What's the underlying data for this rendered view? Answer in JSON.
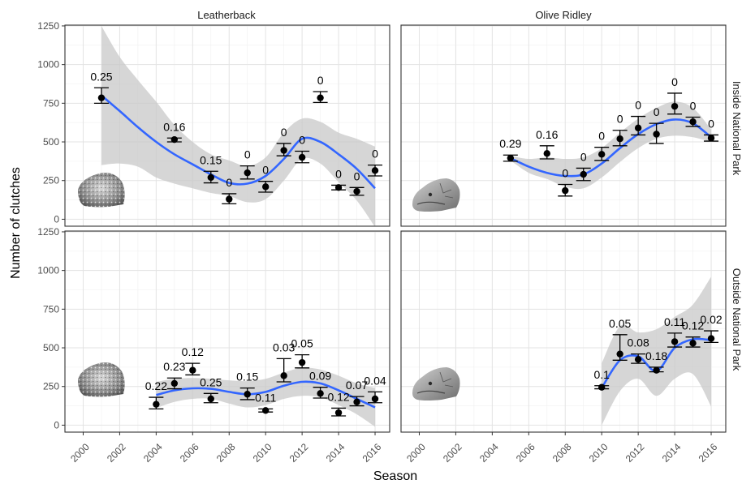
{
  "chart_data": {
    "type": "line",
    "xlabel": "Season",
    "ylabel": "Number of clutches",
    "x_ticks": [
      2000,
      2002,
      2004,
      2006,
      2008,
      2010,
      2012,
      2014,
      2016
    ],
    "y_ticks": [
      0,
      250,
      500,
      750,
      1000,
      1250
    ],
    "xlim": [
      1999.0,
      2016.8
    ],
    "ylim": [
      -45,
      1255
    ],
    "columns": [
      "Leatherback",
      "Olive Ridley"
    ],
    "rows": [
      "Inside National Park",
      "Outside National Park"
    ],
    "panels": [
      {
        "species": "Leatherback",
        "location": "Inside National Park",
        "points": [
          {
            "x": 2001,
            "y": 785,
            "lo": 750,
            "hi": 850,
            "label": "0.25"
          },
          {
            "x": 2005,
            "y": 515,
            "lo": 500,
            "hi": 525,
            "label": "0.16"
          },
          {
            "x": 2007,
            "y": 270,
            "lo": 235,
            "hi": 310,
            "label": "0.15"
          },
          {
            "x": 2008,
            "y": 130,
            "lo": 100,
            "hi": 165,
            "label": "0"
          },
          {
            "x": 2009,
            "y": 300,
            "lo": 260,
            "hi": 345,
            "label": "0"
          },
          {
            "x": 2010,
            "y": 210,
            "lo": 175,
            "hi": 245,
            "label": "0"
          },
          {
            "x": 2011,
            "y": 445,
            "lo": 410,
            "hi": 490,
            "label": "0"
          },
          {
            "x": 2012,
            "y": 400,
            "lo": 365,
            "hi": 440,
            "label": "0"
          },
          {
            "x": 2013,
            "y": 785,
            "lo": 755,
            "hi": 825,
            "label": "0"
          },
          {
            "x": 2014,
            "y": 205,
            "lo": 190,
            "hi": 220,
            "label": "0"
          },
          {
            "x": 2015,
            "y": 180,
            "lo": 155,
            "hi": 205,
            "label": "0"
          },
          {
            "x": 2016,
            "y": 315,
            "lo": 280,
            "hi": 350,
            "label": "0"
          }
        ],
        "smooth": [
          [
            2001,
            800
          ],
          [
            2002,
            700
          ],
          [
            2003,
            595
          ],
          [
            2004,
            500
          ],
          [
            2005,
            420
          ],
          [
            2006,
            355
          ],
          [
            2007,
            290
          ],
          [
            2008,
            235
          ],
          [
            2009,
            230
          ],
          [
            2010,
            280
          ],
          [
            2011,
            390
          ],
          [
            2012,
            520
          ],
          [
            2013,
            500
          ],
          [
            2014,
            420
          ],
          [
            2015,
            325
          ],
          [
            2016,
            200
          ]
        ],
        "band_upper": [
          [
            2001,
            1250
          ],
          [
            2002,
            1050
          ],
          [
            2003,
            900
          ],
          [
            2004,
            760
          ],
          [
            2005,
            610
          ],
          [
            2006,
            500
          ],
          [
            2007,
            420
          ],
          [
            2008,
            380
          ],
          [
            2009,
            345
          ],
          [
            2010,
            400
          ],
          [
            2011,
            560
          ],
          [
            2012,
            650
          ],
          [
            2013,
            630
          ],
          [
            2014,
            560
          ],
          [
            2015,
            520
          ],
          [
            2016,
            470
          ]
        ],
        "band_lower": [
          [
            2001,
            350
          ],
          [
            2002,
            360
          ],
          [
            2003,
            340
          ],
          [
            2004,
            270
          ],
          [
            2005,
            230
          ],
          [
            2006,
            200
          ],
          [
            2007,
            170
          ],
          [
            2008,
            150
          ],
          [
            2009,
            110
          ],
          [
            2010,
            130
          ],
          [
            2011,
            250
          ],
          [
            2012,
            390
          ],
          [
            2013,
            360
          ],
          [
            2014,
            240
          ],
          [
            2015,
            120
          ],
          [
            2016,
            -50
          ]
        ]
      },
      {
        "species": "Olive Ridley",
        "location": "Inside National Park",
        "points": [
          {
            "x": 2005,
            "y": 395,
            "lo": 375,
            "hi": 415,
            "label": "0.29"
          },
          {
            "x": 2007,
            "y": 425,
            "lo": 390,
            "hi": 475,
            "label": "0.16"
          },
          {
            "x": 2008,
            "y": 185,
            "lo": 150,
            "hi": 225,
            "label": "0"
          },
          {
            "x": 2009,
            "y": 290,
            "lo": 250,
            "hi": 330,
            "label": "0"
          },
          {
            "x": 2010,
            "y": 420,
            "lo": 380,
            "hi": 465,
            "label": "0"
          },
          {
            "x": 2011,
            "y": 520,
            "lo": 475,
            "hi": 575,
            "label": "0"
          },
          {
            "x": 2012,
            "y": 590,
            "lo": 545,
            "hi": 665,
            "label": "0"
          },
          {
            "x": 2013,
            "y": 550,
            "lo": 490,
            "hi": 620,
            "label": "0"
          },
          {
            "x": 2014,
            "y": 730,
            "lo": 680,
            "hi": 815,
            "label": "0"
          },
          {
            "x": 2015,
            "y": 630,
            "lo": 600,
            "hi": 660,
            "label": "0"
          },
          {
            "x": 2016,
            "y": 525,
            "lo": 505,
            "hi": 545,
            "label": "0"
          }
        ],
        "smooth": [
          [
            2005,
            395
          ],
          [
            2006,
            340
          ],
          [
            2007,
            300
          ],
          [
            2008,
            280
          ],
          [
            2009,
            290
          ],
          [
            2010,
            360
          ],
          [
            2011,
            460
          ],
          [
            2012,
            550
          ],
          [
            2013,
            615
          ],
          [
            2014,
            645
          ],
          [
            2015,
            620
          ],
          [
            2016,
            530
          ]
        ],
        "band_upper": [
          [
            2005,
            410
          ],
          [
            2006,
            390
          ],
          [
            2007,
            400
          ],
          [
            2008,
            390
          ],
          [
            2009,
            400
          ],
          [
            2010,
            460
          ],
          [
            2011,
            560
          ],
          [
            2012,
            650
          ],
          [
            2013,
            720
          ],
          [
            2014,
            760
          ],
          [
            2015,
            720
          ],
          [
            2016,
            580
          ]
        ],
        "band_lower": [
          [
            2005,
            380
          ],
          [
            2006,
            300
          ],
          [
            2007,
            260
          ],
          [
            2008,
            210
          ],
          [
            2009,
            200
          ],
          [
            2010,
            270
          ],
          [
            2011,
            370
          ],
          [
            2012,
            460
          ],
          [
            2013,
            520
          ],
          [
            2014,
            540
          ],
          [
            2015,
            530
          ],
          [
            2016,
            500
          ]
        ]
      },
      {
        "species": "Leatherback",
        "location": "Outside National Park",
        "points": [
          {
            "x": 2004,
            "y": 135,
            "lo": 105,
            "hi": 180,
            "label": "0.22"
          },
          {
            "x": 2005,
            "y": 270,
            "lo": 235,
            "hi": 305,
            "label": "0.23"
          },
          {
            "x": 2006,
            "y": 355,
            "lo": 325,
            "hi": 400,
            "label": "0.12"
          },
          {
            "x": 2007,
            "y": 170,
            "lo": 145,
            "hi": 205,
            "label": "0.25"
          },
          {
            "x": 2009,
            "y": 200,
            "lo": 165,
            "hi": 240,
            "label": "0.15"
          },
          {
            "x": 2010,
            "y": 95,
            "lo": 85,
            "hi": 105,
            "label": "0.11"
          },
          {
            "x": 2011,
            "y": 320,
            "lo": 280,
            "hi": 430,
            "label": "0.03"
          },
          {
            "x": 2012,
            "y": 405,
            "lo": 370,
            "hi": 455,
            "label": "0.05"
          },
          {
            "x": 2013,
            "y": 205,
            "lo": 175,
            "hi": 245,
            "label": "0.09"
          },
          {
            "x": 2014,
            "y": 80,
            "lo": 60,
            "hi": 110,
            "label": "0.12"
          },
          {
            "x": 2015,
            "y": 150,
            "lo": 125,
            "hi": 185,
            "label": "0.07"
          },
          {
            "x": 2016,
            "y": 170,
            "lo": 145,
            "hi": 215,
            "label": "0.04"
          }
        ],
        "smooth": [
          [
            2004,
            195
          ],
          [
            2005,
            225
          ],
          [
            2006,
            238
          ],
          [
            2007,
            235
          ],
          [
            2008,
            215
          ],
          [
            2009,
            200
          ],
          [
            2010,
            215
          ],
          [
            2011,
            255
          ],
          [
            2012,
            280
          ],
          [
            2013,
            270
          ],
          [
            2014,
            225
          ],
          [
            2015,
            170
          ],
          [
            2016,
            115
          ]
        ],
        "band_upper": [
          [
            2004,
            280
          ],
          [
            2005,
            300
          ],
          [
            2006,
            305
          ],
          [
            2007,
            300
          ],
          [
            2008,
            290
          ],
          [
            2009,
            285
          ],
          [
            2010,
            300
          ],
          [
            2011,
            340
          ],
          [
            2012,
            370
          ],
          [
            2013,
            360
          ],
          [
            2014,
            320
          ],
          [
            2015,
            270
          ],
          [
            2016,
            240
          ]
        ],
        "band_lower": [
          [
            2004,
            110
          ],
          [
            2005,
            150
          ],
          [
            2006,
            170
          ],
          [
            2007,
            170
          ],
          [
            2008,
            140
          ],
          [
            2009,
            115
          ],
          [
            2010,
            130
          ],
          [
            2011,
            170
          ],
          [
            2012,
            190
          ],
          [
            2013,
            180
          ],
          [
            2014,
            130
          ],
          [
            2015,
            70
          ],
          [
            2016,
            -10
          ]
        ]
      },
      {
        "species": "Olive Ridley",
        "location": "Outside National Park",
        "points": [
          {
            "x": 2010,
            "y": 245,
            "lo": 235,
            "hi": 255,
            "label": "0.1"
          },
          {
            "x": 2011,
            "y": 460,
            "lo": 420,
            "hi": 585,
            "label": "0.05"
          },
          {
            "x": 2012,
            "y": 425,
            "lo": 400,
            "hi": 460,
            "label": "0.08"
          },
          {
            "x": 2013,
            "y": 355,
            "lo": 345,
            "hi": 375,
            "label": "0.18"
          },
          {
            "x": 2014,
            "y": 540,
            "lo": 505,
            "hi": 595,
            "label": "0.11"
          },
          {
            "x": 2015,
            "y": 530,
            "lo": 505,
            "hi": 570,
            "label": "0.12"
          },
          {
            "x": 2016,
            "y": 560,
            "lo": 535,
            "hi": 610,
            "label": "0.02"
          }
        ],
        "smooth": [
          [
            2010,
            240
          ],
          [
            2011,
            420
          ],
          [
            2012,
            445
          ],
          [
            2013,
            350
          ],
          [
            2014,
            500
          ],
          [
            2015,
            555
          ],
          [
            2016,
            550
          ]
        ],
        "band_upper": [
          [
            2010,
            400
          ],
          [
            2011,
            640
          ],
          [
            2012,
            600
          ],
          [
            2013,
            620
          ],
          [
            2014,
            700
          ],
          [
            2015,
            780
          ],
          [
            2016,
            960
          ]
        ],
        "band_lower": [
          [
            2010,
            0
          ],
          [
            2011,
            220
          ],
          [
            2012,
            300
          ],
          [
            2013,
            190
          ],
          [
            2014,
            300
          ],
          [
            2015,
            330
          ],
          [
            2016,
            120
          ]
        ]
      }
    ]
  }
}
